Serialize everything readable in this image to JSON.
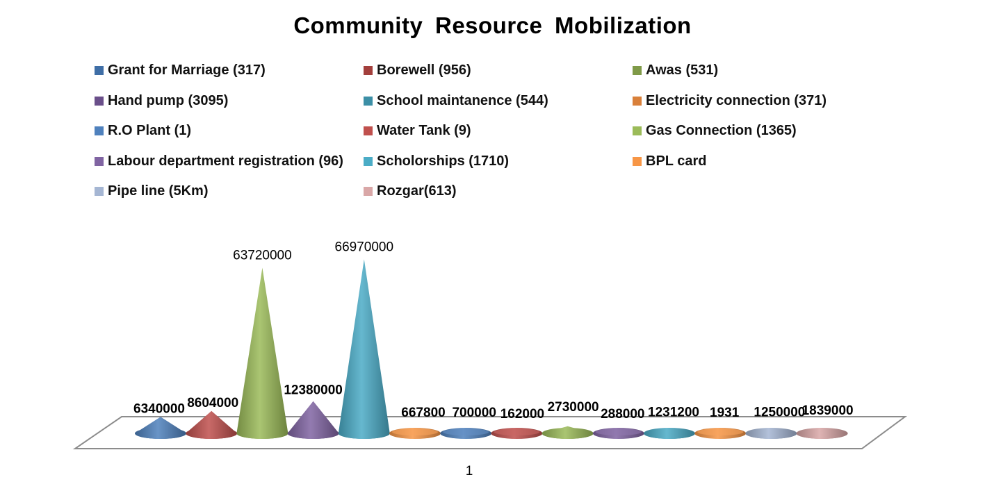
{
  "chart_data": {
    "type": "bar",
    "subtype": "3d-cone",
    "title": "Community  Resource  Mobilization",
    "xlabel": "",
    "ylabel": "",
    "categories": [
      "1"
    ],
    "legend_position": "top",
    "grid": false,
    "ylim": [
      0,
      70000000
    ],
    "series": [
      {
        "name": "Grant for Marriage (317)",
        "values": [
          6340000
        ],
        "color": "#4F81BD",
        "label_bold": true
      },
      {
        "name": "Borewell (956)",
        "values": [
          8604000
        ],
        "color": "#C0504D",
        "label_bold": true
      },
      {
        "name": "Awas (531)",
        "values": [
          63720000
        ],
        "color": "#9BBB59",
        "label_bold": false
      },
      {
        "name": "Hand pump (3095)",
        "values": [
          12380000
        ],
        "color": "#8064A2",
        "label_bold": true
      },
      {
        "name": "School maintanence (544)",
        "values": [
          66970000
        ],
        "color": "#4BACC6",
        "label_bold": false
      },
      {
        "name": "Electricity connection (371)",
        "values": [
          667800
        ],
        "color": "#F79646",
        "label_bold": true
      },
      {
        "name": "R.O Plant (1)",
        "values": [
          700000
        ],
        "color": "#4F81BD",
        "label_bold": true
      },
      {
        "name": "Water Tank (9)",
        "values": [
          162000
        ],
        "color": "#C0504D",
        "label_bold": true
      },
      {
        "name": "Gas Connection (1365)",
        "values": [
          2730000
        ],
        "color": "#9BBB59",
        "label_bold": true
      },
      {
        "name": "Labour department registration (96)",
        "values": [
          288000
        ],
        "color": "#8064A2",
        "label_bold": true
      },
      {
        "name": "Scholorships (1710)",
        "values": [
          1231200
        ],
        "color": "#4BACC6",
        "label_bold": true
      },
      {
        "name": "BPL card",
        "values": [
          1931
        ],
        "color": "#F79646",
        "label_bold": true
      },
      {
        "name": "Pipe line (5Km)",
        "values": [
          1250000
        ],
        "color": "#A5B6D3",
        "label_bold": true
      },
      {
        "name": "Rozgar(613)",
        "values": [
          1839000
        ],
        "color": "#D9A7A7",
        "label_bold": true
      }
    ],
    "data_labels": [
      "6340000",
      "8604000",
      "63720000",
      "12380000",
      "66970000",
      "667800",
      "700000",
      "162000",
      "2730000",
      "288000",
      "1231200",
      "1931",
      "1250000",
      "1839000"
    ]
  },
  "legend_swatch_colors": [
    "#3F6EA6",
    "#A33F3C",
    "#7F9A48",
    "#6A4F8A",
    "#3C8FA6",
    "#D9803A",
    "#4F81BD",
    "#C0504D",
    "#9BBB59",
    "#8064A2",
    "#4BACC6",
    "#F79646",
    "#A5B6D3",
    "#D9A7A7"
  ]
}
